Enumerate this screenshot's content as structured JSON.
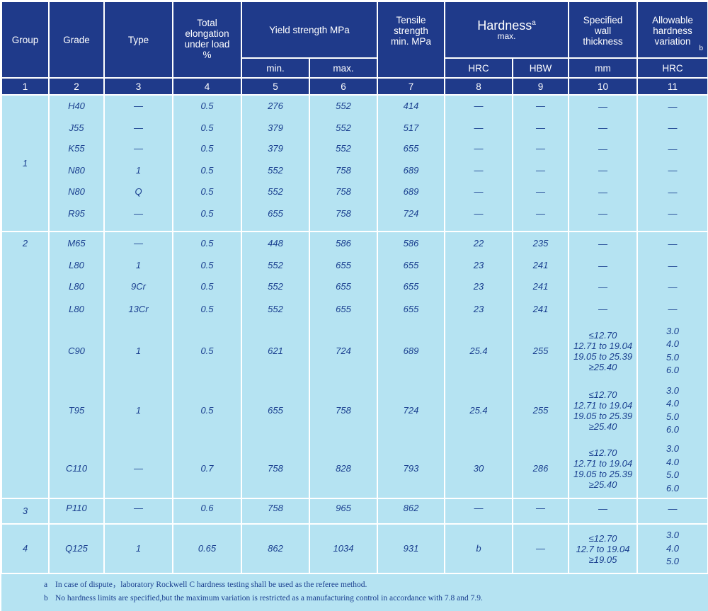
{
  "header": {
    "group": "Group",
    "grade": "Grade",
    "type": "Type",
    "elongation": "Total elongation under load %",
    "yield": "Yield strength MPa",
    "yield_min": "min.",
    "yield_max": "max.",
    "tensile": "Tensile strength min. MPa",
    "hardness": "Hardness",
    "hardness_sup": "a",
    "hardness_sub": "max.",
    "hrc": "HRC",
    "hbw": "HBW",
    "wall": "Specified wall thickness",
    "wall_unit": "mm",
    "variation": "Allowable hardness variation",
    "variation_sup": "b",
    "variation_unit": "HRC"
  },
  "column_numbers": [
    "1",
    "2",
    "3",
    "4",
    "5",
    "6",
    "7",
    "8",
    "9",
    "10",
    "11"
  ],
  "groups": [
    {
      "group": "1",
      "rows": [
        {
          "grade": "H40",
          "type": "—",
          "elong": "0.5",
          "ymin": "276",
          "ymax": "552",
          "tensile": "414",
          "hrc": "—",
          "hbw": "—",
          "wall": [
            "—"
          ],
          "var": [
            "—"
          ]
        },
        {
          "grade": "J55",
          "type": "—",
          "elong": "0.5",
          "ymin": "379",
          "ymax": "552",
          "tensile": "517",
          "hrc": "—",
          "hbw": "—",
          "wall": [
            "—"
          ],
          "var": [
            "—"
          ]
        },
        {
          "grade": "K55",
          "type": "—",
          "elong": "0.5",
          "ymin": "379",
          "ymax": "552",
          "tensile": "655",
          "hrc": "—",
          "hbw": "—",
          "wall": [
            "—"
          ],
          "var": [
            "—"
          ]
        },
        {
          "grade": "N80",
          "type": "1",
          "elong": "0.5",
          "ymin": "552",
          "ymax": "758",
          "tensile": "689",
          "hrc": "—",
          "hbw": "—",
          "wall": [
            "—"
          ],
          "var": [
            "—"
          ]
        },
        {
          "grade": "N80",
          "type": "Q",
          "elong": "0.5",
          "ymin": "552",
          "ymax": "758",
          "tensile": "689",
          "hrc": "—",
          "hbw": "—",
          "wall": [
            "—"
          ],
          "var": [
            "—"
          ]
        },
        {
          "grade": "R95",
          "type": "—",
          "elong": "0.5",
          "ymin": "655",
          "ymax": "758",
          "tensile": "724",
          "hrc": "—",
          "hbw": "—",
          "wall": [
            "—"
          ],
          "var": [
            "—"
          ]
        }
      ]
    },
    {
      "group": "2",
      "rows": [
        {
          "grade": "M65",
          "type": "—",
          "elong": "0.5",
          "ymin": "448",
          "ymax": "586",
          "tensile": "586",
          "hrc": "22",
          "hbw": "235",
          "wall": [
            "—"
          ],
          "var": [
            "—"
          ]
        },
        {
          "grade": "L80",
          "type": "1",
          "elong": "0.5",
          "ymin": "552",
          "ymax": "655",
          "tensile": "655",
          "hrc": "23",
          "hbw": "241",
          "wall": [
            "—"
          ],
          "var": [
            "—"
          ]
        },
        {
          "grade": "L80",
          "type": "9Cr",
          "elong": "0.5",
          "ymin": "552",
          "ymax": "655",
          "tensile": "655",
          "hrc": "23",
          "hbw": "241",
          "wall": [
            "—"
          ],
          "var": [
            "—"
          ]
        },
        {
          "grade": "L80",
          "type": "13Cr",
          "elong": "0.5",
          "ymin": "552",
          "ymax": "655",
          "tensile": "655",
          "hrc": "23",
          "hbw": "241",
          "wall": [
            "—"
          ],
          "var": [
            "—"
          ]
        },
        {
          "grade": "C90",
          "type": "1",
          "elong": "0.5",
          "ymin": "621",
          "ymax": "724",
          "tensile": "689",
          "hrc": "25.4",
          "hbw": "255",
          "wall": [
            "≤12.70",
            "12.71 to 19.04",
            "19.05 to 25.39",
            "≥25.40"
          ],
          "var": [
            "3.0",
            "4.0",
            "5.0",
            "6.0"
          ]
        },
        {
          "grade": "T95",
          "type": "1",
          "elong": "0.5",
          "ymin": "655",
          "ymax": "758",
          "tensile": "724",
          "hrc": "25.4",
          "hbw": "255",
          "wall": [
            "≤12.70",
            "12.71 to 19.04",
            "19.05 to 25.39",
            "≥25.40"
          ],
          "var": [
            "3.0",
            "4.0",
            "5.0",
            "6.0"
          ]
        },
        {
          "grade": "C110",
          "type": "—",
          "elong": "0.7",
          "ymin": "758",
          "ymax": "828",
          "tensile": "793",
          "hrc": "30",
          "hbw": "286",
          "wall": [
            "≤12.70",
            "12.71 to 19.04",
            "19.05 to 25.39",
            "≥25.40"
          ],
          "var": [
            "3.0",
            "4.0",
            "5.0",
            "6.0"
          ]
        }
      ]
    },
    {
      "group": "3",
      "rows": [
        {
          "grade": "P110",
          "type": "—",
          "elong": "0.6",
          "ymin": "758",
          "ymax": "965",
          "tensile": "862",
          "hrc": "—",
          "hbw": "—",
          "wall": [
            "—"
          ],
          "var": [
            "—"
          ]
        }
      ]
    },
    {
      "group": "4",
      "rows": [
        {
          "grade": "Q125",
          "type": "1",
          "elong": "0.65",
          "ymin": "862",
          "ymax": "1034",
          "tensile": "931",
          "hrc": "b",
          "hbw": "—",
          "wall": [
            "≤12.70",
            "12.7 to 19.04",
            "≥19.05"
          ],
          "var": [
            "3.0",
            "4.0",
            "5.0"
          ]
        }
      ]
    }
  ],
  "footnotes": [
    {
      "key": "a",
      "text": "In case of dispute，laboratory Rockwell C hardness testing shall be used as the referee method."
    },
    {
      "key": "b",
      "text": "No hardness limits are specified,but the maximum variation is restricted as a manufacturing control in accordance with 7.8 and 7.9."
    }
  ]
}
